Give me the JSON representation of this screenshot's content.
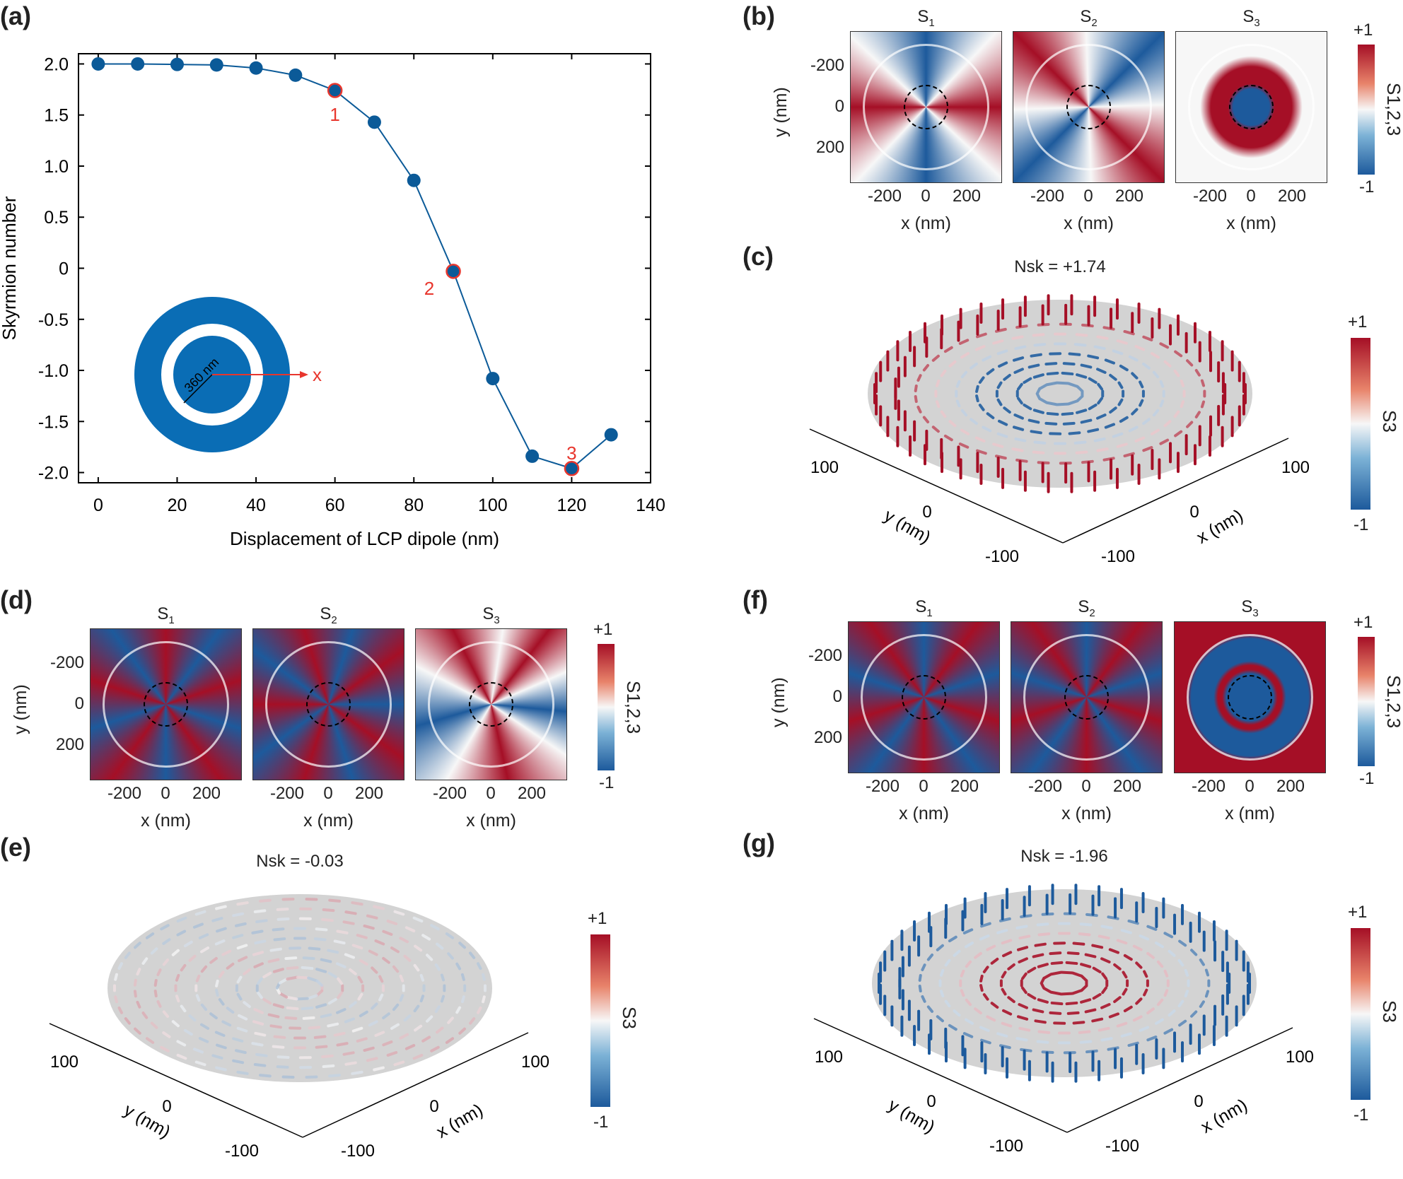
{
  "chart_data": {
    "type": "line",
    "panel": "(a)",
    "xlabel": "Displacement of LCP dipole (nm)",
    "ylabel": "Skyrmion number",
    "x": [
      0,
      10,
      20,
      30,
      40,
      50,
      60,
      70,
      80,
      90,
      100,
      110,
      120,
      130
    ],
    "values": [
      2.0,
      2.0,
      1.995,
      1.99,
      1.96,
      1.89,
      1.74,
      1.43,
      0.86,
      -0.03,
      -1.08,
      -1.84,
      -1.96,
      -1.63
    ],
    "xlim": [
      -5,
      140
    ],
    "ylim": [
      -2.1,
      2.1
    ],
    "xticks": [
      "0",
      "20",
      "40",
      "60",
      "80",
      "100",
      "120",
      "140"
    ],
    "yticks": [
      "2.0",
      "1.5",
      "1.0",
      "0.5",
      "0",
      "-0.5",
      "-1.0",
      "-1.5",
      "-2.0"
    ],
    "grid": false,
    "series_color": "#0b5a98",
    "highlight_color": "#e8362d",
    "annotations": [
      {
        "label": "1",
        "x": 60
      },
      {
        "label": "2",
        "x": 90
      },
      {
        "label": "3",
        "x": 120
      }
    ],
    "inset": {
      "dimension_label": "360 nm",
      "axis_label": "x",
      "ring_color": "#0a6db5"
    }
  },
  "panels": {
    "b": "(b)",
    "c": "(c)",
    "d": "(d)",
    "e": "(e)",
    "f": "(f)",
    "g": "(g)"
  },
  "heatmap": {
    "titles": [
      "S1",
      "S2",
      "S3"
    ],
    "xticks": [
      "-200",
      "0",
      "200"
    ],
    "yticks": [
      "-200",
      "0",
      "200"
    ],
    "xlabel": "x (nm)",
    "ylabel": "y (nm)",
    "colorbar": {
      "max": "+1",
      "min": "-1",
      "label": "S1,2,3"
    }
  },
  "disks": {
    "c": {
      "title": "Nsk = +1.74"
    },
    "e": {
      "title": "Nsk = -0.03"
    },
    "g": {
      "title": "Nsk = -1.96"
    },
    "ticks": [
      "100",
      "0",
      "-100"
    ],
    "xlabel": "x (nm)",
    "ylabel": "y (nm)",
    "colorbar": {
      "max": "+1",
      "min": "-1",
      "label": "S3"
    }
  },
  "colors": {
    "red": "#a50f26",
    "blue": "#1d5a9c",
    "white": "#f7f7f7",
    "disk": "#d3d3d3"
  }
}
